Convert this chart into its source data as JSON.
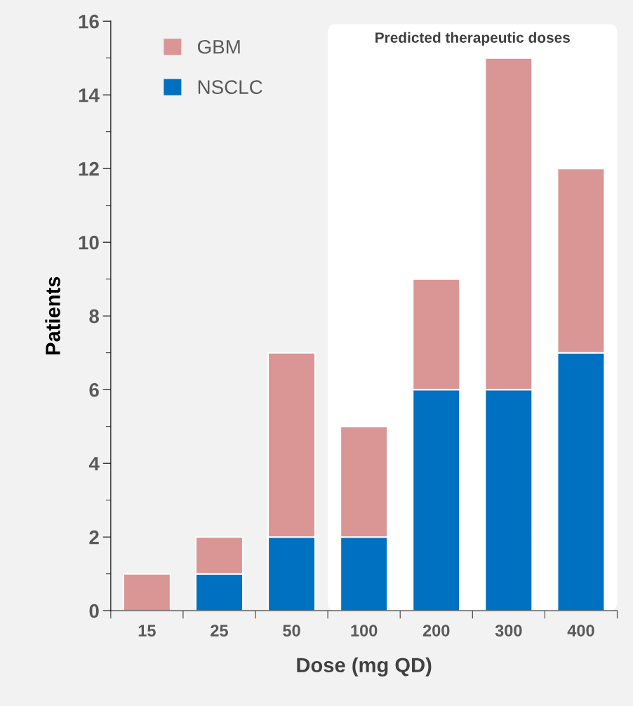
{
  "chart_data": {
    "type": "bar",
    "stacked": true,
    "xlabel": "Dose (mg QD)",
    "ylabel": "Patients",
    "categories": [
      "15",
      "25",
      "50",
      "100",
      "200",
      "300",
      "400"
    ],
    "series": [
      {
        "name": "NSCLC",
        "color": "#0070c0",
        "values": [
          0,
          1,
          2,
          2,
          6,
          6,
          7
        ]
      },
      {
        "name": "GBM",
        "color": "#d99694",
        "values": [
          1,
          1,
          5,
          3,
          3,
          9,
          5
        ]
      }
    ],
    "ylim": [
      0,
      16
    ],
    "yticks": [
      0,
      2,
      4,
      6,
      8,
      10,
      12,
      14,
      16
    ],
    "grid": false,
    "legend": "top left",
    "bands": [
      {
        "axis": "x",
        "from": "100",
        "to": "400",
        "label": "Predicted therapeutic doses",
        "color": "#ffffff"
      }
    ]
  }
}
